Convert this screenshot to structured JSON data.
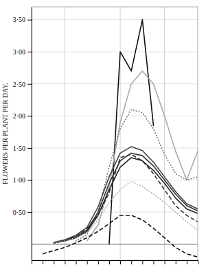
{
  "chart_data": {
    "type": "line",
    "ylabel": "FLOWERS PER PLANT PER DAY.",
    "x": [
      0,
      1,
      2,
      3,
      4,
      5,
      6,
      7,
      8,
      9,
      10,
      11,
      12,
      13,
      14,
      15
    ],
    "xlim": [
      0,
      15
    ],
    "xticks": [
      0,
      1,
      2,
      3,
      4,
      5,
      6,
      7,
      8,
      9,
      10,
      11,
      12,
      13,
      14,
      15
    ],
    "ylim": [
      -0.25,
      3.7
    ],
    "yticks": [
      {
        "value": 0.5,
        "label": "0·50"
      },
      {
        "value": 1.0,
        "label": "1·00"
      },
      {
        "value": 1.5,
        "label": "1·50"
      },
      {
        "value": 2.0,
        "label": "2·00"
      },
      {
        "value": 2.5,
        "label": "2·50"
      },
      {
        "value": 3.0,
        "label": "3·00"
      },
      {
        "value": 3.5,
        "label": "3·50"
      }
    ],
    "tick_labels": "y",
    "grid": true,
    "vlines": [
      3,
      8,
      12
    ],
    "hline": 0.0,
    "series": [
      {
        "color": "#111111",
        "line_style": "solid",
        "values": [
          null,
          null,
          null,
          null,
          null,
          null,
          null,
          0.0,
          3.0,
          2.7,
          3.5,
          1.85,
          null,
          null,
          null,
          null
        ]
      },
      {
        "color": "#aaaaaa",
        "line_style": "solid",
        "values": [
          null,
          null,
          null,
          null,
          null,
          0.05,
          0.3,
          0.9,
          1.9,
          2.5,
          2.7,
          2.5,
          2.0,
          1.45,
          1.0,
          1.45
        ]
      },
      {
        "color": "#666666",
        "line_style": "dotted",
        "values": [
          null,
          null,
          null,
          null,
          0.05,
          0.15,
          0.5,
          1.2,
          1.8,
          2.1,
          2.05,
          1.8,
          1.4,
          1.1,
          1.0,
          1.05
        ]
      },
      {
        "color": "#333333",
        "line_style": "dashed",
        "values": [
          null,
          null,
          null,
          0.05,
          0.12,
          0.25,
          0.45,
          0.8,
          1.35,
          1.4,
          1.3,
          1.1,
          0.85,
          0.6,
          0.45,
          0.35
        ]
      },
      {
        "color": "#222222",
        "line_style": "solid",
        "values": [
          null,
          null,
          0.02,
          0.05,
          0.1,
          0.2,
          0.45,
          0.85,
          1.2,
          1.35,
          1.3,
          1.15,
          0.95,
          0.72,
          0.55,
          0.48
        ]
      },
      {
        "color": "#333333",
        "line_style": "solid",
        "values": [
          null,
          null,
          0.02,
          0.06,
          0.12,
          0.22,
          0.5,
          0.95,
          1.3,
          1.42,
          1.38,
          1.22,
          1.0,
          0.78,
          0.6,
          0.52
        ]
      },
      {
        "color": "#444444",
        "line_style": "solid",
        "values": [
          null,
          null,
          0.03,
          0.07,
          0.14,
          0.26,
          0.58,
          1.05,
          1.42,
          1.52,
          1.46,
          1.28,
          1.05,
          0.82,
          0.63,
          0.55
        ]
      },
      {
        "color": "#aaaaaa",
        "line_style": "dotted",
        "values": [
          null,
          null,
          0.02,
          0.05,
          0.1,
          0.18,
          0.38,
          0.65,
          0.85,
          0.98,
          0.9,
          0.78,
          0.65,
          0.5,
          0.35,
          0.22
        ]
      },
      {
        "color": "#111111",
        "line_style": "dashed",
        "values": [
          null,
          -0.15,
          -0.1,
          -0.05,
          0.02,
          0.1,
          0.2,
          0.32,
          0.45,
          0.45,
          0.38,
          0.25,
          0.1,
          -0.05,
          -0.15,
          -0.2
        ]
      }
    ]
  }
}
